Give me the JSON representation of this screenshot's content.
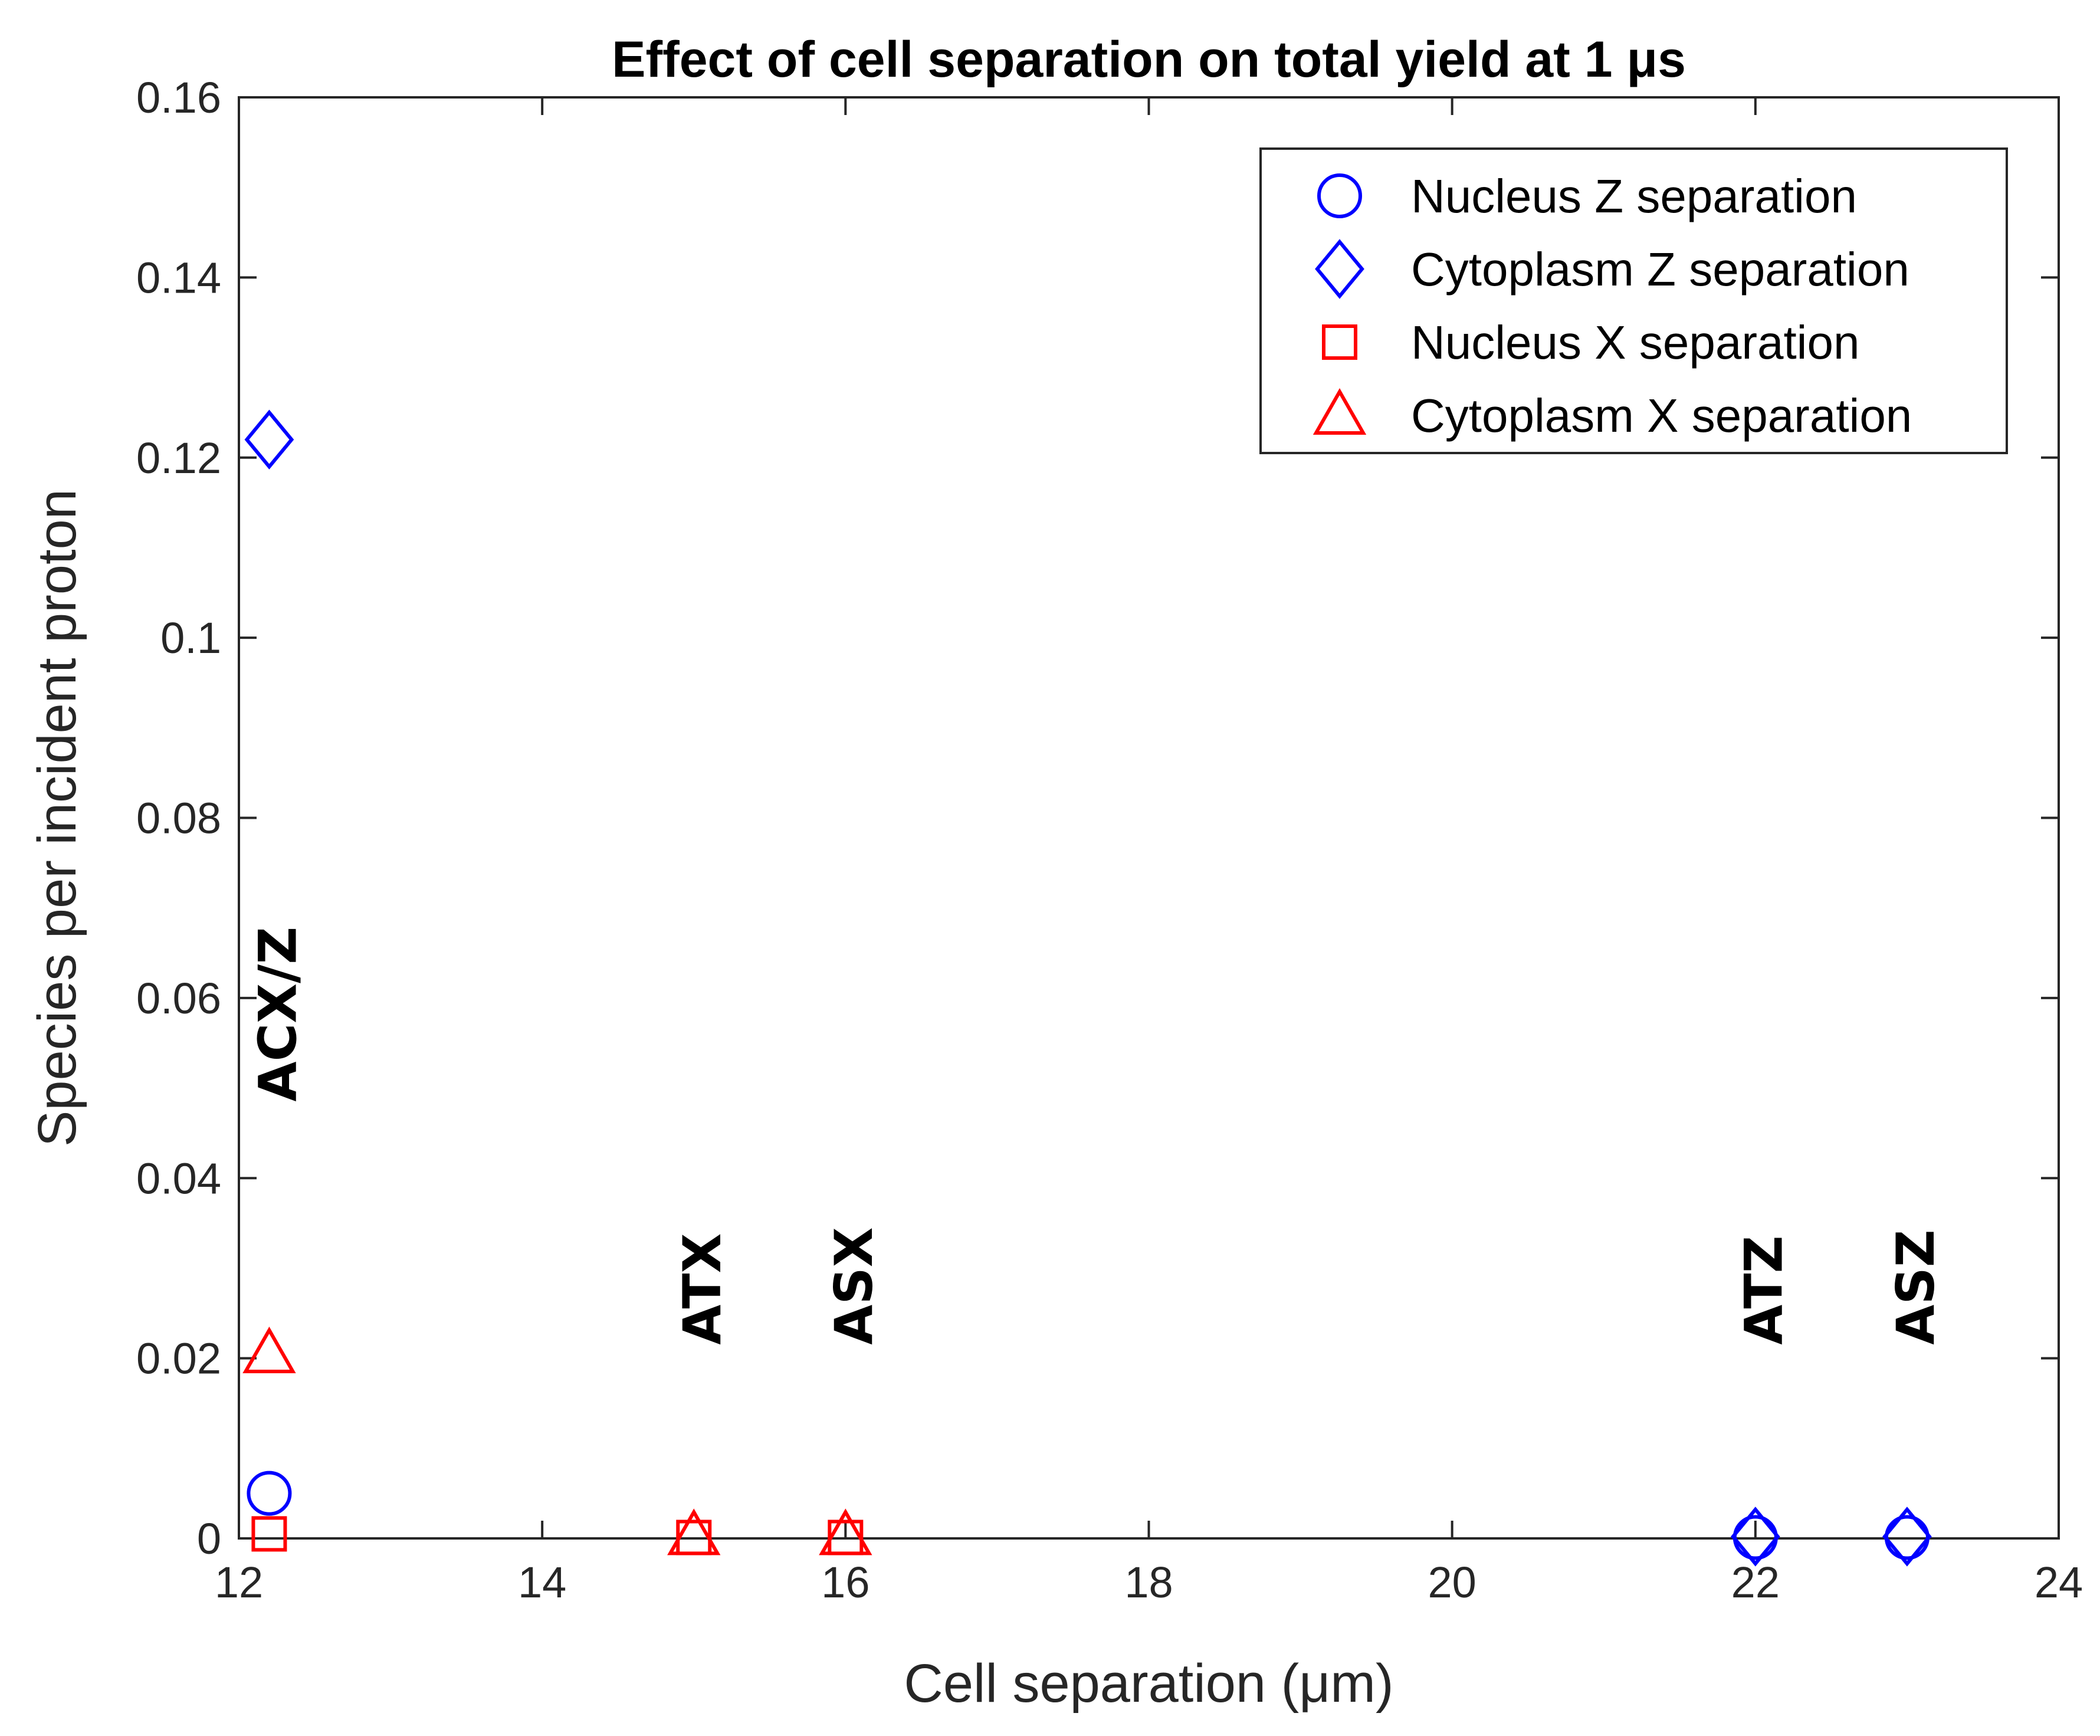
{
  "chart_data": {
    "type": "scatter",
    "title": "Effect of cell separation on total yield at 1 μs",
    "xlabel": "Cell separation (μm)",
    "ylabel": "Species per incident proton",
    "xlim": [
      12,
      24
    ],
    "ylim": [
      0,
      0.16
    ],
    "x_ticks": [
      "12",
      "14",
      "16",
      "18",
      "20",
      "22",
      "24"
    ],
    "y_ticks": [
      "0",
      "0.02",
      "0.04",
      "0.06",
      "0.08",
      "0.1",
      "0.12",
      "0.14",
      "0.16"
    ],
    "grid": false,
    "legend_position": "top-right",
    "series": [
      {
        "name": "Nucleus Z separation",
        "marker": "circle",
        "color": "#0000ff",
        "points": [
          {
            "x": 12.2,
            "y": 0.005
          },
          {
            "x": 22,
            "y": 0.0001
          },
          {
            "x": 23,
            "y": 0.0001
          }
        ]
      },
      {
        "name": "Cytoplasm Z separation",
        "marker": "diamond",
        "color": "#0000ff",
        "points": [
          {
            "x": 12.2,
            "y": 0.122
          },
          {
            "x": 22,
            "y": 0.0002
          },
          {
            "x": 23,
            "y": 0.0002
          }
        ]
      },
      {
        "name": "Nucleus X separation",
        "marker": "square",
        "color": "#ff0000",
        "points": [
          {
            "x": 12.2,
            "y": 0.0005
          },
          {
            "x": 15,
            "y": 0.0001
          },
          {
            "x": 16,
            "y": 0.0001
          }
        ]
      },
      {
        "name": "Cytoplasm X separation",
        "marker": "triangle",
        "color": "#ff0000",
        "points": [
          {
            "x": 12.2,
            "y": 0.0205
          },
          {
            "x": 15,
            "y": 0.0003
          },
          {
            "x": 16,
            "y": 0.0003
          }
        ]
      }
    ],
    "annotations": [
      {
        "text": "ACX/Z",
        "x": 12.25,
        "y": 0.0485
      },
      {
        "text": "ATX",
        "x": 15.05,
        "y": 0.0215
      },
      {
        "text": "ASX",
        "x": 16.05,
        "y": 0.0215
      },
      {
        "text": "ATZ",
        "x": 22.05,
        "y": 0.0215
      },
      {
        "text": "ASZ",
        "x": 23.05,
        "y": 0.0215
      }
    ]
  }
}
